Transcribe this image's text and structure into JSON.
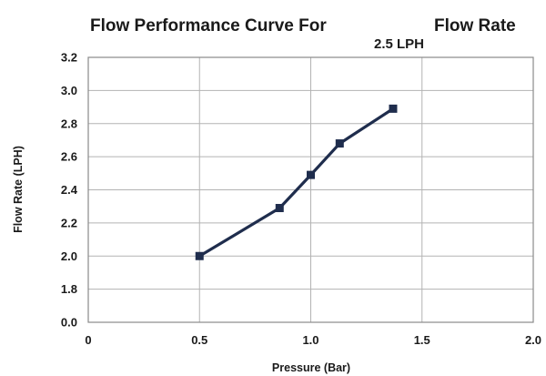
{
  "chart_data": {
    "type": "line",
    "title_left": "Flow Performance Curve For",
    "title_right": "Flow Rate",
    "subtitle": "2.5 LPH",
    "xlabel": "Pressure (Bar)",
    "ylabel": "Flow Rate  (LPH)",
    "xlim": [
      0,
      2.0
    ],
    "x_ticks": [
      0,
      0.5,
      1.0,
      1.5,
      2.0
    ],
    "x_tick_labels": [
      "0",
      "0.5",
      "1.0",
      "1.5",
      "2.0"
    ],
    "y_tick_labels": [
      "0.0",
      "1.8",
      "2.0",
      "2.2",
      "2.4",
      "2.6",
      "2.8",
      "3.0",
      "3.2"
    ],
    "y_axis_break": "axis jumps from 0.0 directly to 1.8",
    "grid": true,
    "series": [
      {
        "color": "#1f2d4d",
        "marker": "square",
        "x": [
          0.5,
          0.86,
          1.0,
          1.13,
          1.37
        ],
        "y": [
          2.0,
          2.29,
          2.49,
          2.68,
          2.89
        ]
      }
    ]
  }
}
